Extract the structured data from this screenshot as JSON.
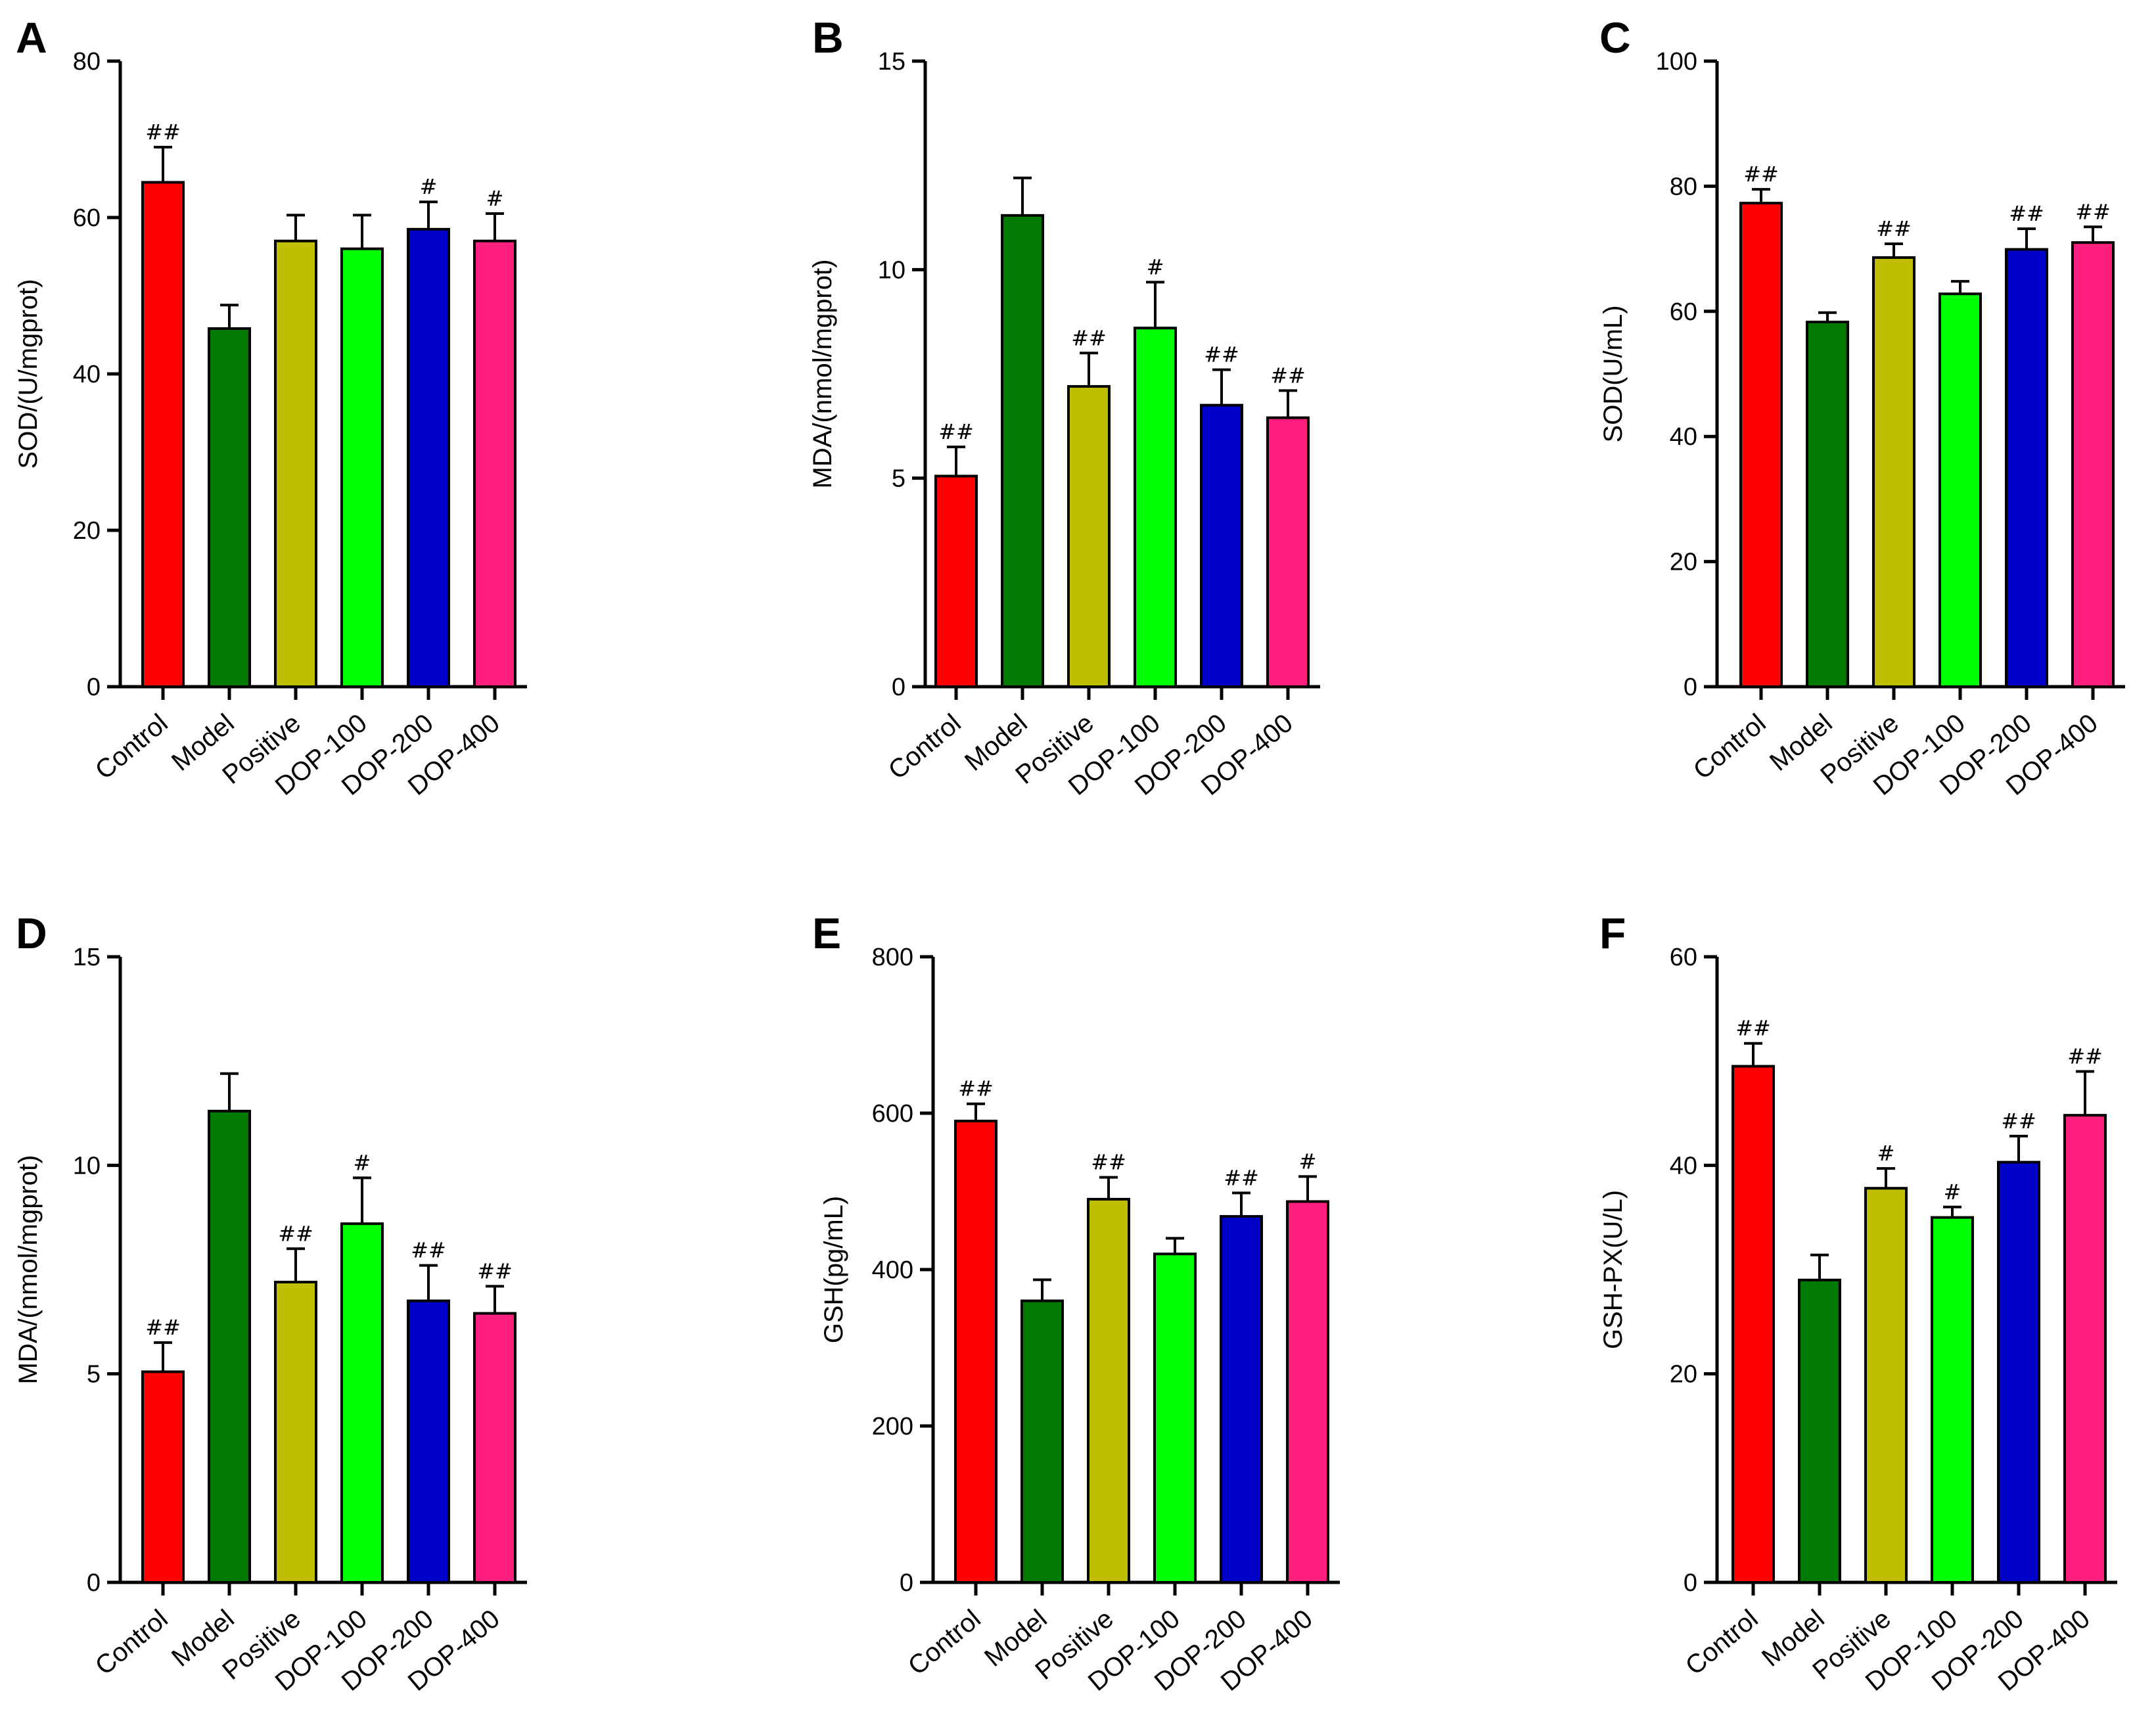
{
  "chart_data": [
    {
      "panel": "A",
      "type": "bar",
      "categories": [
        "Control",
        "Model",
        "Positive",
        "DOP-100",
        "DOP-200",
        "DOP-400"
      ],
      "values": [
        64.5,
        45.8,
        57.0,
        56.0,
        58.5,
        57.0
      ],
      "errors": [
        4.5,
        3.0,
        3.3,
        4.3,
        3.5,
        3.5
      ],
      "significance": [
        "##",
        "",
        "",
        "",
        "#",
        "#"
      ],
      "colors": [
        "#ff0000",
        "#007a00",
        "#bfbf00",
        "#00ff00",
        "#0000c8",
        "#ff1f7f"
      ],
      "ylabel": "SOD/(U/mgprot)",
      "ylim": [
        0,
        80
      ],
      "yticks": [
        0,
        20,
        40,
        60,
        80
      ],
      "ytick_labels": [
        "0",
        "20",
        "40",
        "60",
        "80"
      ]
    },
    {
      "panel": "B",
      "type": "bar",
      "categories": [
        "Control",
        "Model",
        "Positive",
        "DOP-100",
        "DOP-200",
        "DOP-400"
      ],
      "values": [
        5.05,
        11.3,
        7.2,
        8.6,
        6.75,
        6.45
      ],
      "errors": [
        0.7,
        0.9,
        0.8,
        1.1,
        0.85,
        0.65
      ],
      "significance": [
        "##",
        "",
        "##",
        "#",
        "##",
        "##"
      ],
      "colors": [
        "#ff0000",
        "#007a00",
        "#bfbf00",
        "#00ff00",
        "#0000c8",
        "#ff1f7f"
      ],
      "ylabel": "MDA/(nmol/mgprot)",
      "ylim": [
        0,
        15
      ],
      "yticks": [
        0,
        5,
        10,
        15
      ],
      "ytick_labels": [
        "0",
        "5",
        "10",
        "15"
      ]
    },
    {
      "panel": "C",
      "type": "bar",
      "categories": [
        "Control",
        "Model",
        "Positive",
        "DOP-100",
        "DOP-200",
        "DOP-400"
      ],
      "values": [
        77.3,
        58.3,
        68.6,
        62.8,
        69.9,
        71.0
      ],
      "errors": [
        2.2,
        1.5,
        2.2,
        2.0,
        3.3,
        2.5
      ],
      "significance": [
        "##",
        "",
        "##",
        "",
        "##",
        "##"
      ],
      "colors": [
        "#ff0000",
        "#007a00",
        "#bfbf00",
        "#00ff00",
        "#0000c8",
        "#ff1f7f"
      ],
      "ylabel": "SOD(U/mL)",
      "ylim": [
        0,
        100
      ],
      "yticks": [
        0,
        20,
        40,
        60,
        80,
        100
      ],
      "ytick_labels": [
        "0",
        "20",
        "40",
        "60",
        "80",
        "100"
      ]
    },
    {
      "panel": "D",
      "type": "bar",
      "categories": [
        "Control",
        "Model",
        "Positive",
        "DOP-100",
        "DOP-200",
        "DOP-400"
      ],
      "values": [
        5.05,
        11.3,
        7.2,
        8.6,
        6.75,
        6.45
      ],
      "errors": [
        0.7,
        0.9,
        0.8,
        1.1,
        0.85,
        0.65
      ],
      "significance": [
        "##",
        "",
        "##",
        "#",
        "##",
        "##"
      ],
      "colors": [
        "#ff0000",
        "#007a00",
        "#bfbf00",
        "#00ff00",
        "#0000c8",
        "#ff1f7f"
      ],
      "ylabel": "MDA/(nmol/mgprot)",
      "ylim": [
        0,
        15
      ],
      "yticks": [
        0,
        5,
        10,
        15
      ],
      "ytick_labels": [
        "0",
        "5",
        "10",
        "15"
      ]
    },
    {
      "panel": "E",
      "type": "bar",
      "categories": [
        "Control",
        "Model",
        "Positive",
        "DOP-100",
        "DOP-200",
        "DOP-400"
      ],
      "values": [
        590,
        360,
        490,
        420,
        468,
        487
      ],
      "errors": [
        22,
        27,
        28,
        20,
        30,
        32
      ],
      "significance": [
        "##",
        "",
        "##",
        "",
        "##",
        "#"
      ],
      "colors": [
        "#ff0000",
        "#007a00",
        "#bfbf00",
        "#00ff00",
        "#0000c8",
        "#ff1f7f"
      ],
      "ylabel": "GSH(pg/mL)",
      "ylim": [
        0,
        800
      ],
      "yticks": [
        0,
        200,
        400,
        600,
        800
      ],
      "ytick_labels": [
        "0",
        "200",
        "400",
        "600",
        "800"
      ]
    },
    {
      "panel": "F",
      "type": "bar",
      "categories": [
        "Control",
        "Model",
        "Positive",
        "DOP-100",
        "DOP-200",
        "DOP-400"
      ],
      "values": [
        49.5,
        29.0,
        37.8,
        35.0,
        40.3,
        44.8
      ],
      "errors": [
        2.2,
        2.4,
        1.9,
        1.0,
        2.5,
        4.2
      ],
      "significance": [
        "##",
        "",
        "#",
        "#",
        "##",
        "##"
      ],
      "colors": [
        "#ff0000",
        "#007a00",
        "#bfbf00",
        "#00ff00",
        "#0000c8",
        "#ff1f7f"
      ],
      "ylabel": "GSH-PX(U/L)",
      "ylim": [
        0,
        60
      ],
      "yticks": [
        0,
        20,
        40,
        60
      ],
      "ytick_labels": [
        "0",
        "20",
        "40",
        "60"
      ]
    }
  ]
}
